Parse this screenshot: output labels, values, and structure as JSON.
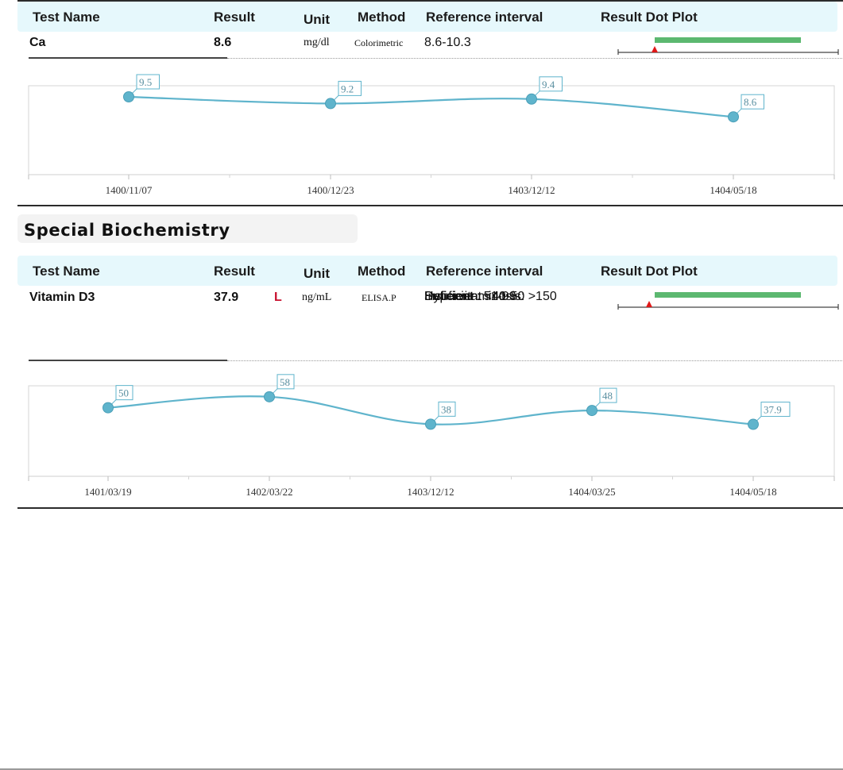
{
  "columns": {
    "test_name": "Test Name",
    "result": "Result",
    "unit": "Unit",
    "method": "Method",
    "reference": "Reference interval",
    "plot": "Result Dot Plot"
  },
  "section": {
    "title": "Special Biochemistry"
  },
  "tests": [
    {
      "name": "Ca",
      "result": "8.6",
      "flag": "",
      "unit": "mg/dl",
      "method": "Colorimetric",
      "reference": [
        "8.6-10.3"
      ]
    },
    {
      "name": "Vitamin D3",
      "result": "37.9",
      "flag": "L",
      "unit": "ng/mL",
      "method": "ELISA.P",
      "reference": [
        "Deficient : <40",
        "Insuficient : 41-50",
        "Suficient : 51-99",
        "Hypervitaminosis: >150"
      ]
    }
  ],
  "chart_data": [
    {
      "type": "line",
      "x": [
        "1400/11/07",
        "1400/12/23",
        "1403/12/12",
        "1404/05/18"
      ],
      "values": [
        9.5,
        9.2,
        9.4,
        8.6
      ],
      "labels": [
        "9.5",
        "9.2",
        "9.4",
        "8.6"
      ],
      "ylim": [
        6.0,
        10.0
      ],
      "color": "#5fb4cc",
      "grid": false
    },
    {
      "type": "line",
      "x": [
        "1401/03/19",
        "1402/03/22",
        "1403/12/12",
        "1404/03/25",
        "1404/05/18"
      ],
      "values": [
        50,
        58,
        38,
        48,
        37.9
      ],
      "labels": [
        "50",
        "58",
        "38",
        "48",
        "37.9"
      ],
      "ylim": [
        0,
        66
      ],
      "color": "#5fb4cc",
      "grid": false
    }
  ],
  "dot_plots": [
    {
      "result_fraction": 0.18,
      "range_color": "#5cb870",
      "marker_color": "#e01818"
    },
    {
      "result_fraction": 0.165,
      "range_color": "#5cb870",
      "marker_color": "#e01818"
    }
  ]
}
